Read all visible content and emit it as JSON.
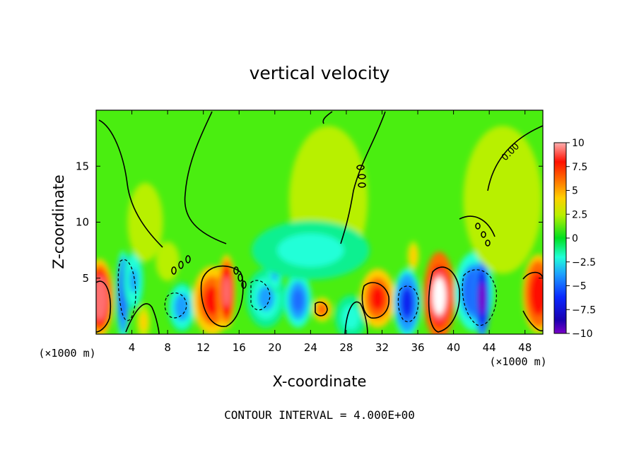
{
  "chart_data": {
    "type": "heatmap",
    "title": "vertical velocity",
    "xlabel": "X-coordinate",
    "ylabel": "Z-coordinate",
    "x_unit_left": "(×1000 m)",
    "x_unit_right": "(×1000 m)",
    "xlim": [
      0,
      50
    ],
    "ylim": [
      0,
      20
    ],
    "x_ticks": [
      4,
      8,
      12,
      16,
      20,
      24,
      28,
      32,
      36,
      40,
      44,
      48
    ],
    "y_ticks": [
      5,
      10,
      15
    ],
    "colorbar": {
      "range": [
        -10,
        10
      ],
      "tick_values": [
        10,
        7.5,
        5,
        2.5,
        0,
        -2.5,
        -5,
        -7.5,
        -10
      ],
      "tick_labels": [
        "10",
        "7.5",
        "5",
        "2.5",
        "0",
        "−2.5",
        "−5",
        "−7.5",
        "−10"
      ]
    },
    "contour_label": "0.00",
    "footer": "CONTOUR INTERVAL = 4.000E+00",
    "features": [
      {
        "x": 0.4,
        "z": 3.2,
        "value": 9.5,
        "sx": 0.7,
        "sz": 1.6
      },
      {
        "x": 3.0,
        "z": 3.5,
        "value": -6.5,
        "sx": 0.35,
        "sz": 1.8
      },
      {
        "x": 4.2,
        "z": 4.8,
        "value": -4,
        "sx": 0.5,
        "sz": 1.2
      },
      {
        "x": 5.3,
        "z": 1.1,
        "value": 3,
        "sx": 0.35,
        "sz": 0.7
      },
      {
        "x": 5.5,
        "z": 10.0,
        "value": 2.5,
        "sx": 0.9,
        "sz": 1.6
      },
      {
        "x": 9.6,
        "z": 2.4,
        "value": -4.5,
        "sx": 0.7,
        "sz": 1.0
      },
      {
        "x": 13.0,
        "z": 3.0,
        "value": 7,
        "sx": 1.0,
        "sz": 1.4
      },
      {
        "x": 14.6,
        "z": 3.8,
        "value": 9,
        "sx": 0.45,
        "sz": 1.5
      },
      {
        "x": 19.0,
        "z": 3.2,
        "value": -3.5,
        "sx": 1.0,
        "sz": 1.2
      },
      {
        "x": 20.0,
        "z": 5.5,
        "value": -4,
        "sx": 0.4,
        "sz": 0.8
      },
      {
        "x": 22.6,
        "z": 3.0,
        "value": -5.5,
        "sx": 0.7,
        "sz": 1.1
      },
      {
        "x": 25.3,
        "z": 2.2,
        "value": 5,
        "sx": 0.5,
        "sz": 0.5
      },
      {
        "x": 26.0,
        "z": 12.0,
        "value": 1.5,
        "sx": 2.0,
        "sz": 3.0
      },
      {
        "x": 28.5,
        "z": 1.5,
        "value": -2.5,
        "sx": 0.8,
        "sz": 0.9
      },
      {
        "x": 31.5,
        "z": 3.2,
        "value": 6.5,
        "sx": 0.9,
        "sz": 1.2
      },
      {
        "x": 34.8,
        "z": 2.8,
        "value": -7,
        "sx": 0.7,
        "sz": 1.4
      },
      {
        "x": 35.5,
        "z": 7.0,
        "value": 4,
        "sx": 0.3,
        "sz": 0.6
      },
      {
        "x": 38.4,
        "z": 3.4,
        "value": 10.5,
        "sx": 0.8,
        "sz": 1.8
      },
      {
        "x": 42.3,
        "z": 3.8,
        "value": -6,
        "sx": 1.0,
        "sz": 1.6
      },
      {
        "x": 43.2,
        "z": 3.2,
        "value": -10.5,
        "sx": 0.4,
        "sz": 1.6
      },
      {
        "x": 45.5,
        "z": 12.0,
        "value": 2.0,
        "sx": 2.0,
        "sz": 3.0
      },
      {
        "x": 49.5,
        "z": 3.6,
        "value": 7.5,
        "sx": 0.8,
        "sz": 1.6
      },
      {
        "x": 24.0,
        "z": 7.5,
        "value": -2.5,
        "sx": 3.0,
        "sz": 1.2
      },
      {
        "x": 8.0,
        "z": 6.5,
        "value": 1.5,
        "sx": 0.6,
        "sz": 0.8
      }
    ]
  }
}
